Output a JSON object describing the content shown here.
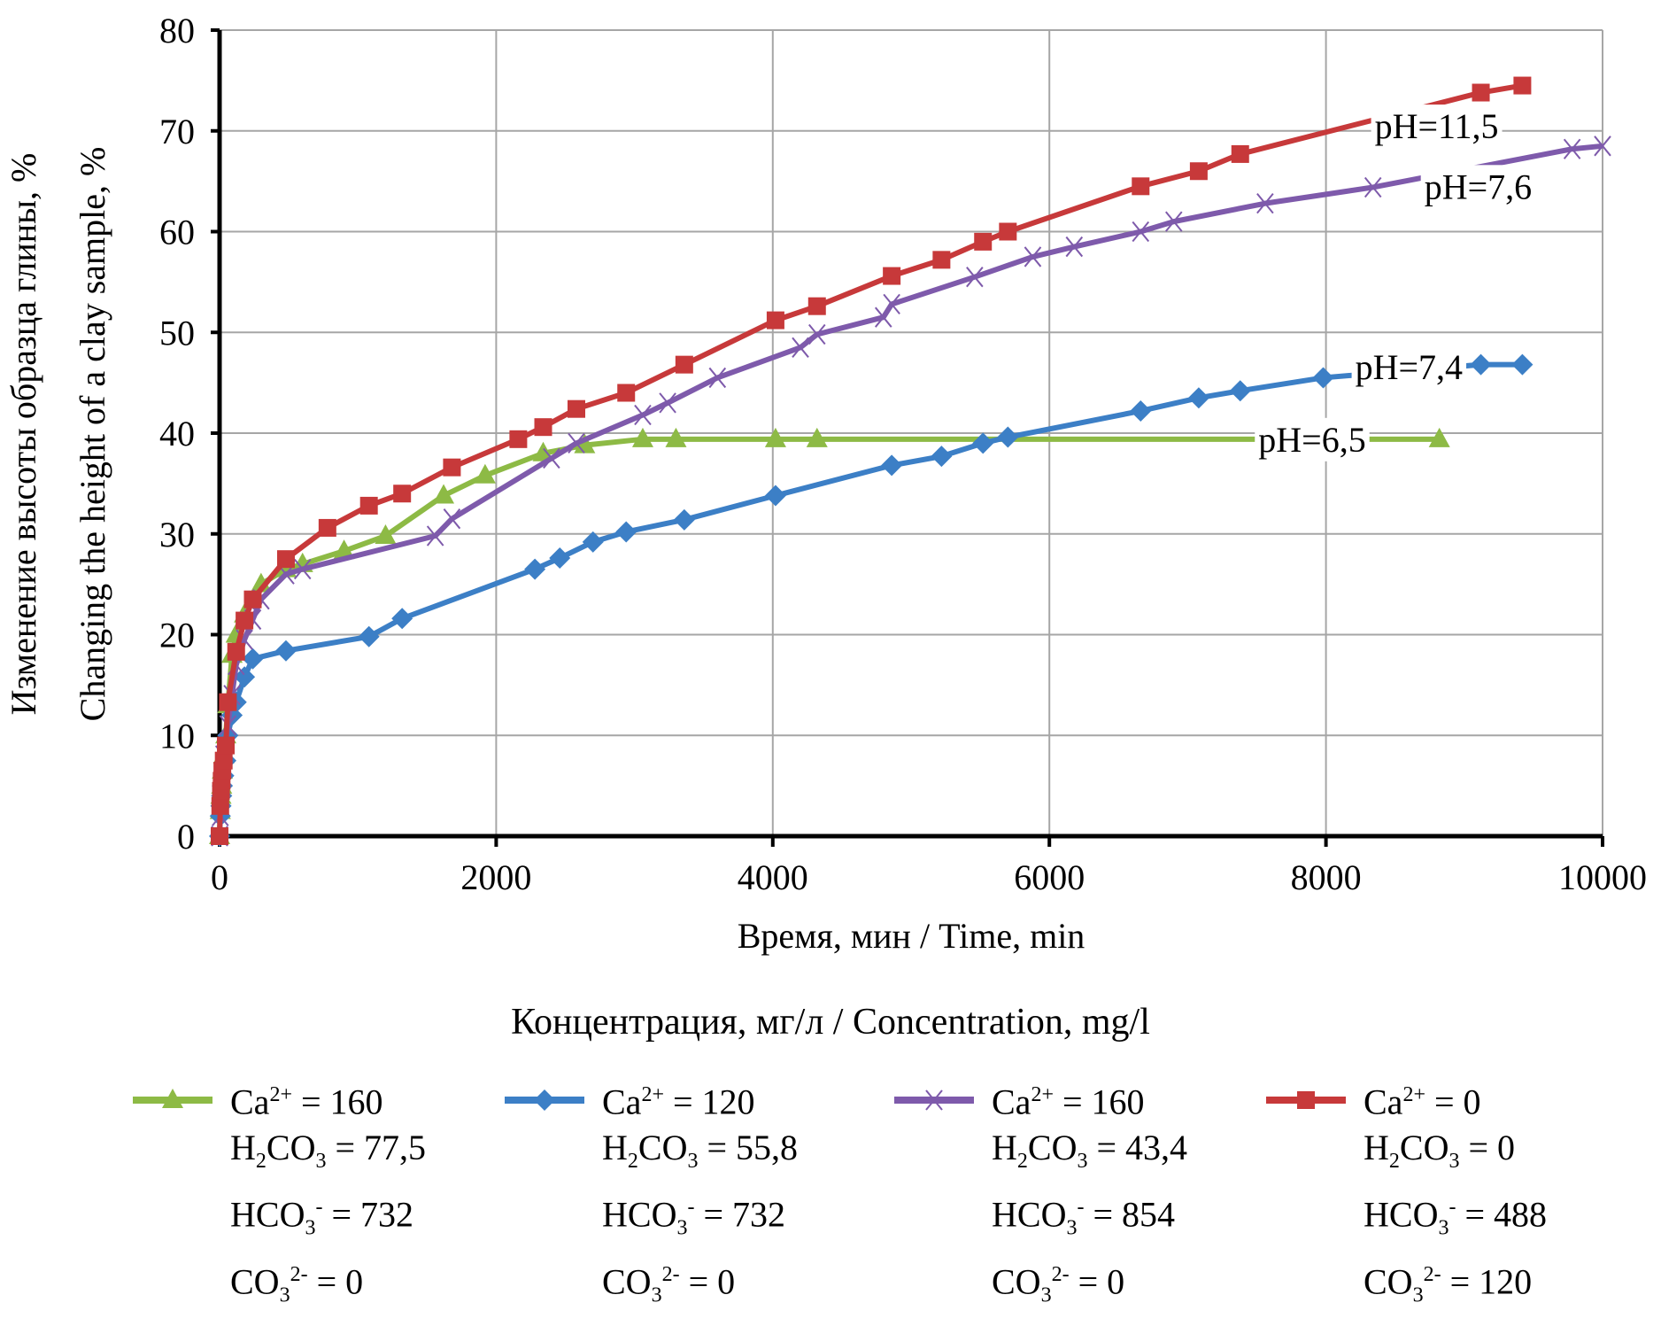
{
  "chart_data": {
    "type": "line",
    "title": "",
    "xlabel": "Время, мин / Time, min",
    "ylabel_ru": "Изменение высоты образца глины, %",
    "ylabel_en": "Changing the height of a clay sample, %",
    "xlim": [
      0,
      10000
    ],
    "ylim": [
      0,
      80
    ],
    "xticks": [
      0,
      2000,
      4000,
      6000,
      8000,
      10000
    ],
    "yticks": [
      0,
      10,
      20,
      30,
      40,
      50,
      60,
      70,
      80
    ],
    "xtick_labels": [
      "0",
      "2000",
      "4000",
      "6000",
      "8000",
      "10000"
    ],
    "ytick_labels": [
      "0",
      "10",
      "20",
      "30",
      "40",
      "50",
      "60",
      "70",
      "80"
    ],
    "grid": true,
    "legend_title": "Концентрация, мг/л / Concentration, mg/l",
    "legend_placement": "bottom",
    "series": [
      {
        "name": "pH=6,5",
        "label": "pH=6,5",
        "color": "#8dba45",
        "marker": "triangle",
        "legend": [
          "Ca2+ = 160",
          "H2CO3 = 77,5",
          "HCO3- = 732",
          "CO32- = 0"
        ],
        "x": [
          0,
          5,
          10,
          15,
          20,
          30,
          45,
          60,
          90,
          120,
          180,
          300,
          480,
          600,
          900,
          1200,
          1620,
          1920,
          2340,
          2640,
          3060,
          3300,
          4020,
          4320,
          8820
        ],
        "y": [
          0,
          2.5,
          4,
          5,
          6.5,
          8,
          10,
          13,
          18,
          20,
          22,
          25,
          26.5,
          27,
          28.3,
          29.8,
          33.8,
          35.8,
          38,
          38.8,
          39.4,
          39.4,
          39.4,
          39.4,
          39.4
        ]
      },
      {
        "name": "pH=7,4",
        "label": "pH=7,4",
        "color": "#3c7fc6",
        "marker": "diamond",
        "legend": [
          "Ca2+ = 120",
          "H2CO3 = 55,8",
          "HCO3- = 732",
          "CO32- = 0"
        ],
        "x": [
          0,
          5,
          10,
          15,
          20,
          30,
          45,
          60,
          90,
          120,
          180,
          240,
          480,
          1080,
          1320,
          2280,
          2460,
          2700,
          2940,
          3360,
          4020,
          4860,
          5220,
          5520,
          5700,
          6660,
          7080,
          7380,
          7980,
          9120,
          9420
        ],
        "y": [
          0,
          2,
          3,
          4,
          5,
          6,
          7.5,
          10,
          12,
          13.3,
          15.8,
          17.6,
          18.4,
          19.8,
          21.6,
          26.5,
          27.6,
          29.2,
          30.2,
          31.4,
          33.8,
          36.8,
          37.7,
          39,
          39.6,
          42.2,
          43.5,
          44.2,
          45.5,
          46.8,
          46.8
        ]
      },
      {
        "name": "pH=7,6",
        "label": "pH=7,6",
        "color": "#7e5aab",
        "marker": "x",
        "legend": [
          "Ca2+ = 160",
          "H2CO3 = 43,4",
          "HCO3- = 854",
          "CO32- = 0"
        ],
        "x": [
          0,
          5,
          10,
          20,
          30,
          60,
          90,
          120,
          180,
          240,
          300,
          480,
          600,
          1560,
          1680,
          2400,
          2580,
          3060,
          3240,
          3600,
          4200,
          4320,
          4800,
          4860,
          5460,
          5880,
          6180,
          6660,
          6900,
          7560,
          8340,
          9780,
          10000
        ],
        "y": [
          0,
          2,
          4,
          6,
          8,
          11,
          14,
          17,
          19.5,
          21.5,
          23.5,
          26,
          26.5,
          29.8,
          31.5,
          37.5,
          39,
          41.8,
          43,
          45.5,
          48.5,
          49.8,
          51.5,
          52.8,
          55.5,
          57.5,
          58.5,
          60,
          61,
          62.8,
          64.4,
          68.2,
          68.5
        ]
      },
      {
        "name": "pH=11,5",
        "label": "pH=11,5",
        "color": "#c7393a",
        "marker": "square",
        "legend": [
          "Ca2+ = 0",
          "H2CO3 = 0",
          "HCO3- = 488",
          "CO32- = 120"
        ],
        "x": [
          0,
          5,
          10,
          15,
          20,
          30,
          45,
          60,
          120,
          180,
          240,
          480,
          780,
          1080,
          1320,
          1680,
          2160,
          2340,
          2580,
          2940,
          3360,
          4020,
          4320,
          4860,
          5220,
          5520,
          5700,
          6660,
          7080,
          7380,
          9120,
          9420
        ],
        "y": [
          0,
          3,
          4.5,
          5.5,
          6.5,
          7.5,
          9,
          13.3,
          18.3,
          21.4,
          23.5,
          27.5,
          30.6,
          32.8,
          34,
          36.6,
          39.4,
          40.6,
          42.4,
          44,
          46.8,
          51.2,
          52.6,
          55.6,
          57.2,
          59,
          60,
          64.5,
          66,
          67.7,
          73.8,
          74.5
        ]
      }
    ],
    "annotations": [
      {
        "text": "pH=11,5",
        "x": 8800,
        "y": 70.5
      },
      {
        "text": "pH=7,6",
        "x": 9100,
        "y": 64.5
      },
      {
        "text": "pH=7,4",
        "x": 8600,
        "y": 46.6
      },
      {
        "text": "pH=6,5",
        "x": 7900,
        "y": 39.4
      }
    ]
  }
}
